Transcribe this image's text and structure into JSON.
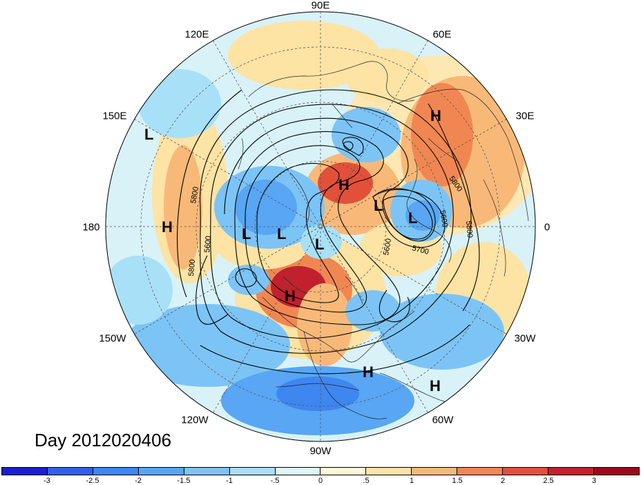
{
  "map": {
    "date_label": "Day 2012020406",
    "longitude_labels": [
      "90E",
      "60E",
      "30E",
      "0",
      "30W",
      "60W",
      "90W",
      "120W",
      "150W",
      "180",
      "150E",
      "120E"
    ],
    "pressure_centers": [
      {
        "id": "h-europe",
        "type": "H"
      },
      {
        "id": "h-arctic",
        "type": "H"
      },
      {
        "id": "h-canada",
        "type": "H"
      },
      {
        "id": "h-pacific",
        "type": "H"
      },
      {
        "id": "h-caribbean",
        "type": "H"
      },
      {
        "id": "h-atlantic",
        "type": "H"
      },
      {
        "id": "l-pacific",
        "type": "L"
      },
      {
        "id": "l-siberia-1",
        "type": "L"
      },
      {
        "id": "l-siberia-2",
        "type": "L"
      },
      {
        "id": "l-arctic",
        "type": "L"
      },
      {
        "id": "l-scandinavia",
        "type": "L"
      },
      {
        "id": "l-europe",
        "type": "L"
      }
    ],
    "contour_labels": [
      "5800",
      "5800",
      "5600",
      "5800",
      "5600",
      "5700",
      "5600",
      "5800"
    ]
  },
  "colorbar": {
    "ticks": [
      "-3",
      "-2.5",
      "-2",
      "-1.5",
      "-1",
      "-.5",
      "0",
      ".5",
      "1",
      "1.5",
      "2",
      "2.5",
      "3"
    ],
    "colors": [
      "#1c1ecf",
      "#2f62e6",
      "#3e86f0",
      "#58a6f4",
      "#7cc4f6",
      "#a8e0f8",
      "#def6fb",
      "#fff7d6",
      "#fde3a4",
      "#f8b978",
      "#f08752",
      "#e2503a",
      "#c2202c",
      "#9b0a1c"
    ]
  }
}
